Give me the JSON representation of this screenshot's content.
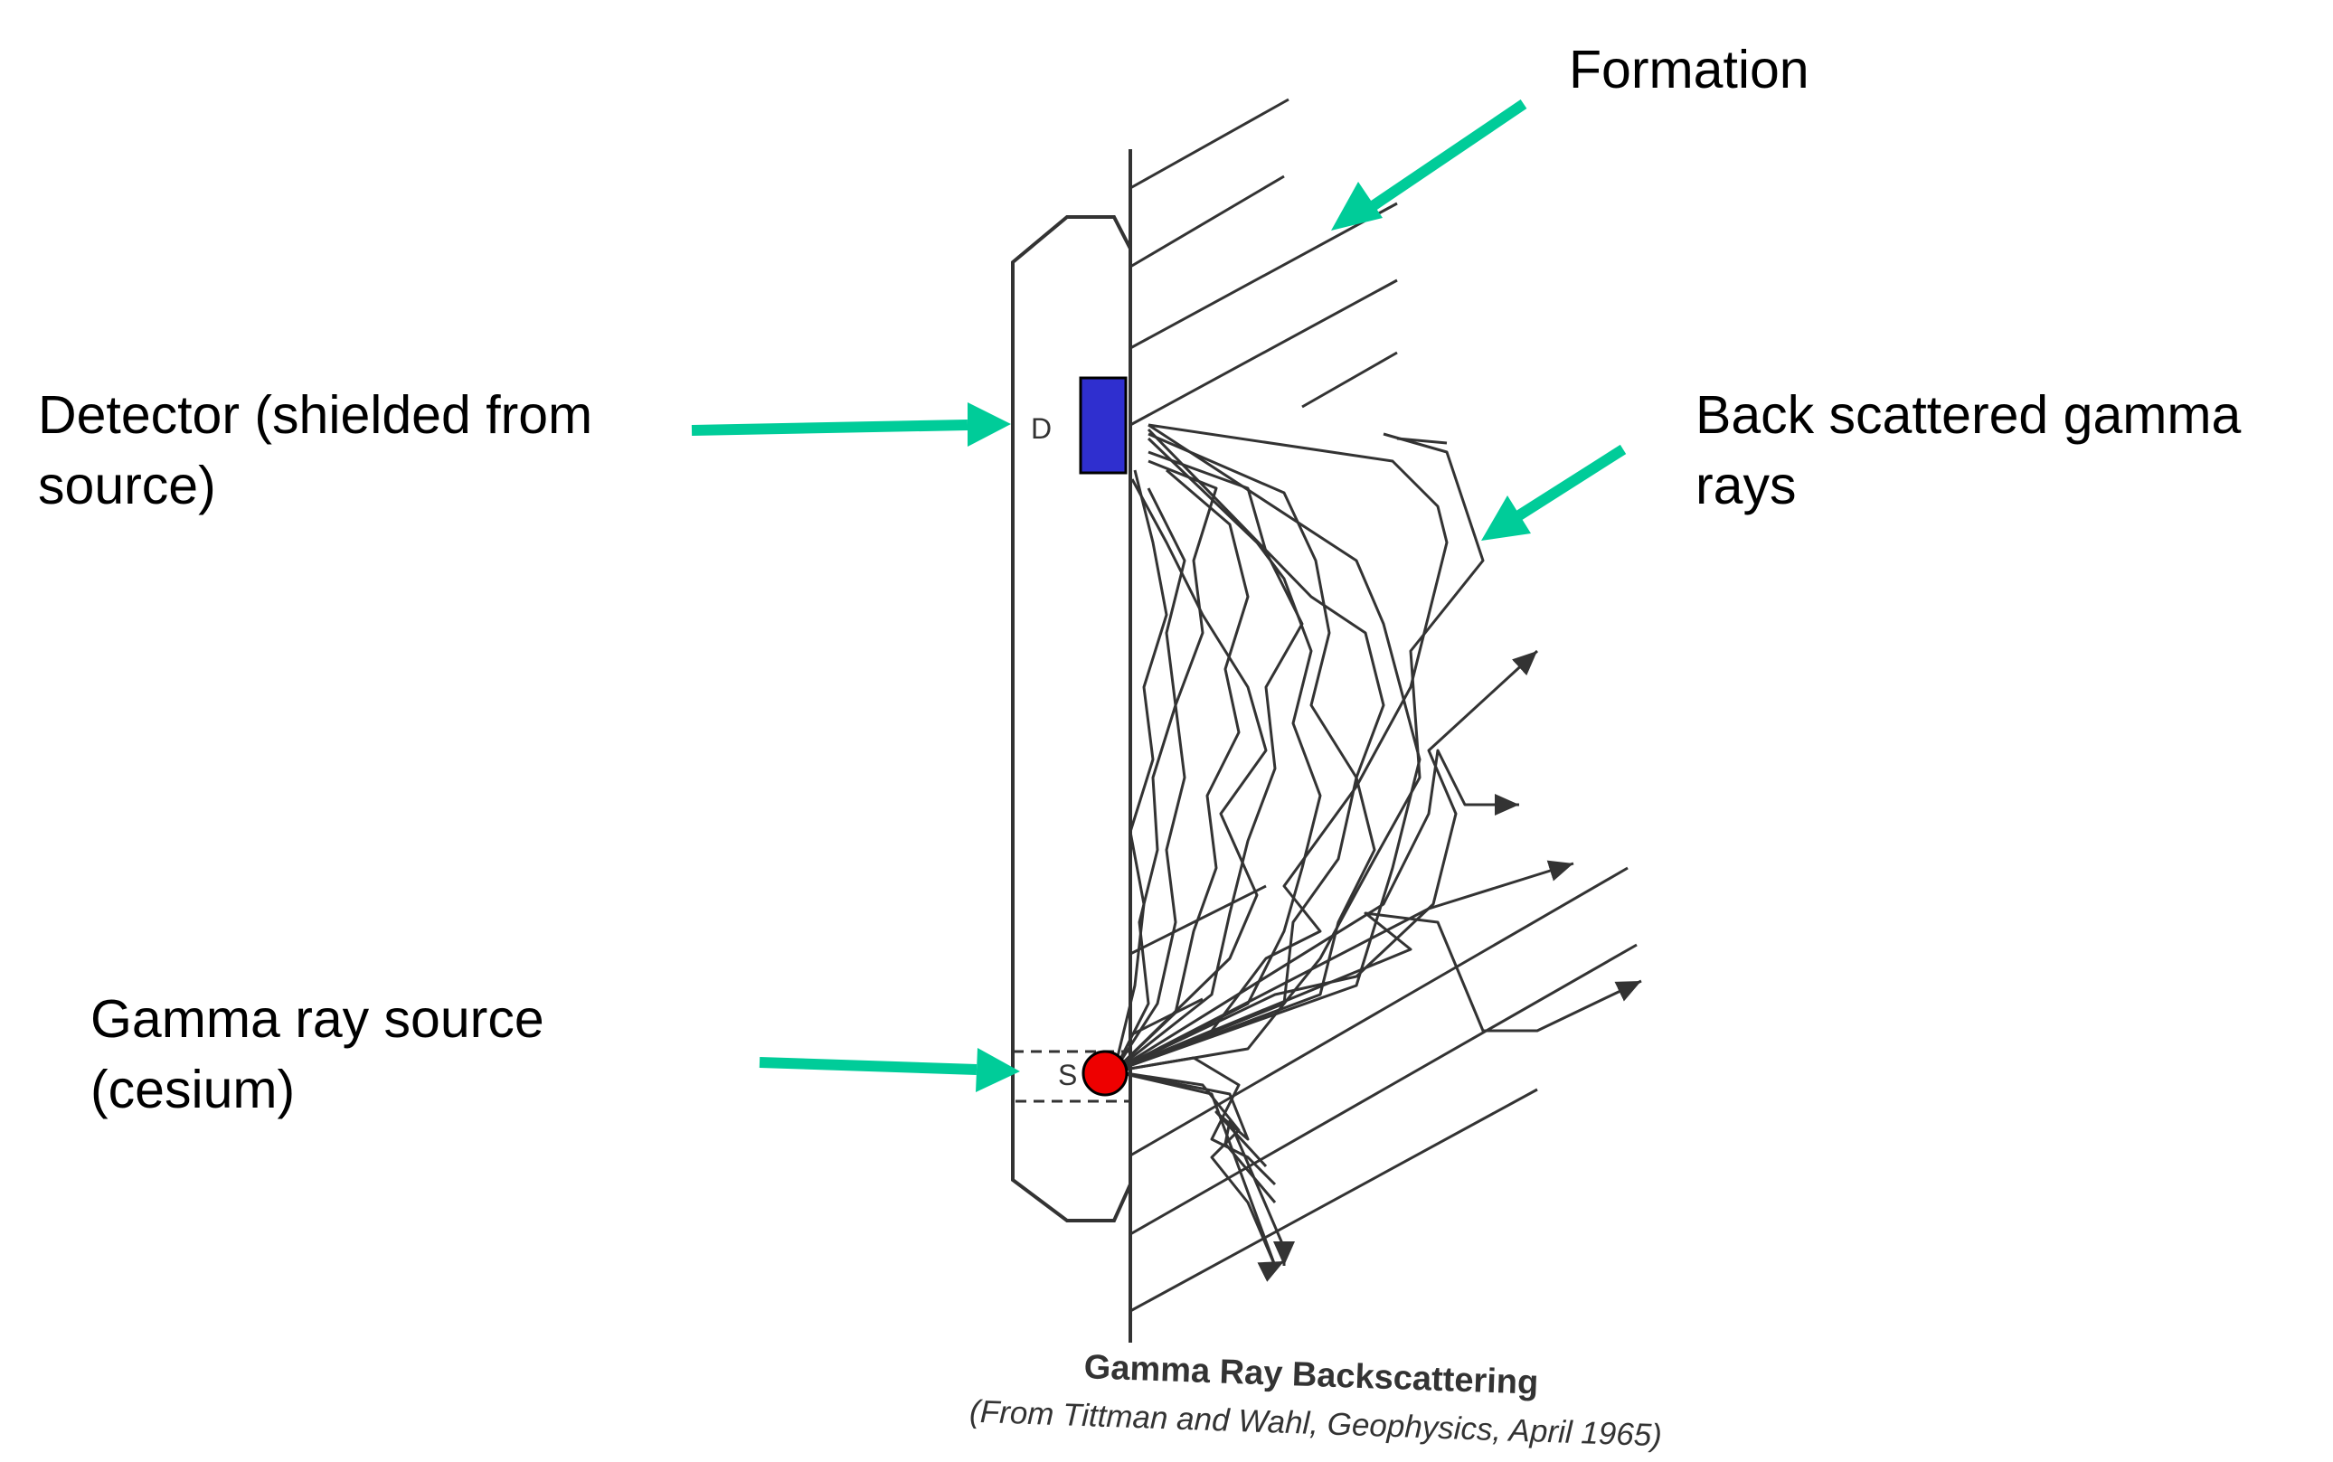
{
  "labels": {
    "formation": "Formation",
    "detector_line1": "Detector (shielded from",
    "detector_line2": "source)",
    "backscatter_line1": "Back scattered gamma",
    "backscatter_line2": "rays",
    "source_line1": "Gamma ray source",
    "source_line2": "(cesium)"
  },
  "tool_marks": {
    "detector_letter": "D",
    "source_letter": "S"
  },
  "caption": {
    "title": "Gamma Ray Backscattering",
    "source": "(From Tittman and Wahl, Geophysics, April 1965)"
  },
  "colors": {
    "arrow": "#00cc99",
    "detector": "#2f2fcf",
    "source": "#ee0000",
    "linework": "#333333"
  }
}
